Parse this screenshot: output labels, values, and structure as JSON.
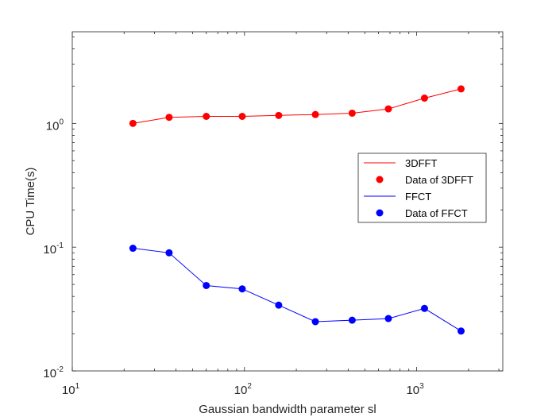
{
  "chart_data": {
    "type": "line",
    "xscale": "log",
    "yscale": "log",
    "xlim": [
      10,
      3162
    ],
    "ylim": [
      0.01,
      5.5
    ],
    "xlabel": "Gaussian bandwidth parameter sl",
    "ylabel": "CPU Time(s)",
    "x_ticks": [
      {
        "value": 10,
        "base": "10",
        "exp": "1"
      },
      {
        "value": 100,
        "base": "10",
        "exp": "2"
      },
      {
        "value": 1000,
        "base": "10",
        "exp": "3"
      }
    ],
    "y_ticks": [
      {
        "value": 0.01,
        "base": "10",
        "exp": "-2"
      },
      {
        "value": 0.1,
        "base": "10",
        "exp": "-1"
      },
      {
        "value": 1,
        "base": "10",
        "exp": "0"
      }
    ],
    "series": [
      {
        "name": "3DFFT",
        "marker_name": "Data of 3DFFT",
        "color": "#ff0000",
        "x": [
          22.5,
          36.5,
          60,
          97,
          158,
          258,
          422,
          685,
          1110,
          1810
        ],
        "y": [
          1.0,
          1.12,
          1.14,
          1.14,
          1.16,
          1.18,
          1.21,
          1.31,
          1.6,
          1.9
        ]
      },
      {
        "name": "FFCT",
        "marker_name": "Data of FFCT",
        "color": "#0000ff",
        "x": [
          22.5,
          36.5,
          60,
          97,
          158,
          258,
          422,
          685,
          1110,
          1810
        ],
        "y": [
          0.098,
          0.09,
          0.049,
          0.046,
          0.034,
          0.025,
          0.0257,
          0.0265,
          0.032,
          0.021
        ]
      }
    ],
    "legend": {
      "placement": "center-right",
      "entries": [
        "3DFFT",
        "Data of 3DFFT",
        "FFCT",
        "Data of FFCT"
      ]
    },
    "grid": false
  }
}
